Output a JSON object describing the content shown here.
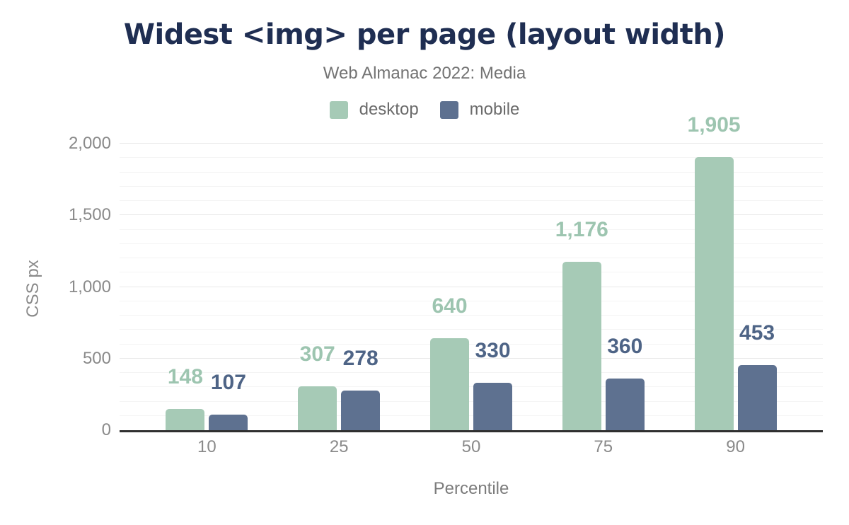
{
  "header": {
    "title": "Widest <img> per page (layout width)",
    "subtitle": "Web Almanac 2022: Media"
  },
  "chart_data": {
    "type": "bar",
    "title": "Widest <img> per page (layout width)",
    "subtitle": "Web Almanac 2022: Media",
    "categories": [
      "10",
      "25",
      "50",
      "75",
      "90"
    ],
    "series": [
      {
        "name": "desktop",
        "color": "#a6cab6",
        "label_color": "#9dc5b0",
        "values": [
          148,
          307,
          640,
          1176,
          1905
        ],
        "labels": [
          "148",
          "307",
          "640",
          "1,176",
          "1,905"
        ]
      },
      {
        "name": "mobile",
        "color": "#5e7190",
        "label_color": "#4e6486",
        "values": [
          107,
          278,
          330,
          360,
          453
        ],
        "labels": [
          "107",
          "278",
          "330",
          "360",
          "453"
        ]
      }
    ],
    "xlabel": "Percentile",
    "ylabel": "CSS px",
    "ylim": [
      0,
      2000
    ],
    "yticks": [
      {
        "value": 0,
        "label": "0"
      },
      {
        "value": 500,
        "label": "500"
      },
      {
        "value": 1000,
        "label": "1,000"
      },
      {
        "value": 1500,
        "label": "1,500"
      },
      {
        "value": 2000,
        "label": "2,000"
      }
    ],
    "grid": {
      "minor_step": 100,
      "major_step": 500,
      "minor_color": "#f4f4f4",
      "major_color": "#e9e9e9"
    },
    "legend_position": "top",
    "axis_color": "#2f2f2f",
    "background_color": "#ffffff"
  }
}
